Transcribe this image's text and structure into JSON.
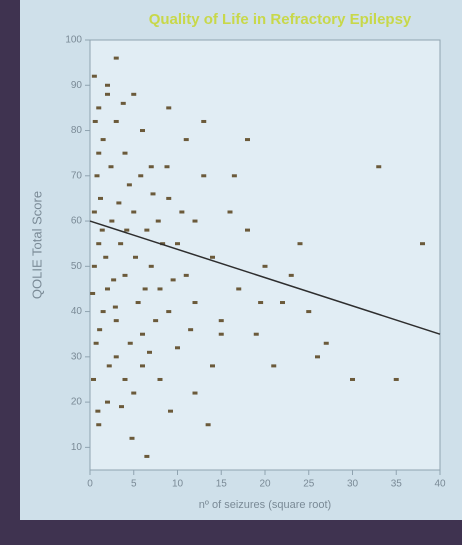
{
  "chart_data": {
    "type": "scatter",
    "title": "Quality of Life in Refractory Epilepsy",
    "x_label": "nº of seizures (square root)",
    "y_label": "QOLIE Total Score",
    "xlim": [
      0,
      40
    ],
    "xticks": [
      0,
      5,
      10,
      15,
      20,
      25,
      30,
      35,
      40
    ],
    "ylim": [
      5,
      100
    ],
    "yticks": [
      10,
      20,
      30,
      40,
      50,
      60,
      70,
      80,
      90,
      100
    ],
    "color": "#6b5a3a",
    "x": [
      0.5,
      1,
      1.5,
      2,
      0.8,
      1.2,
      2.5,
      3,
      1,
      0.5,
      2,
      1.5,
      3,
      0.7,
      2.2,
      4,
      4.5,
      5,
      3.5,
      4,
      5.5,
      6,
      3,
      4,
      2,
      1,
      5,
      6,
      7,
      6.5,
      7,
      8,
      7.5,
      6,
      5,
      9,
      10,
      11,
      12,
      9,
      10,
      8,
      13,
      14,
      12,
      15,
      16,
      17,
      18,
      19,
      20,
      21,
      22,
      24,
      25,
      27,
      30,
      33,
      38,
      9,
      11,
      13,
      15,
      12,
      14,
      18,
      3,
      2,
      1,
      0.5,
      1.8,
      2.7,
      3.3,
      4.2,
      0.3,
      1.1,
      2.4,
      3.8,
      4.6,
      5.2,
      6.3,
      7.2,
      8.3,
      9.5,
      10.5,
      11.5,
      0.6,
      1.4,
      2.9,
      3.6,
      5.8,
      6.8,
      7.8,
      8.8,
      16.5,
      19.5,
      23,
      26,
      35,
      0.4,
      0.9,
      4.8,
      9.2,
      13.5,
      6.5
    ],
    "y": [
      92,
      85,
      78,
      90,
      70,
      65,
      60,
      82,
      55,
      50,
      45,
      40,
      38,
      33,
      28,
      75,
      68,
      62,
      55,
      48,
      42,
      35,
      30,
      25,
      20,
      15,
      88,
      80,
      72,
      58,
      50,
      45,
      38,
      28,
      22,
      65,
      55,
      48,
      60,
      40,
      32,
      25,
      70,
      52,
      42,
      38,
      62,
      45,
      58,
      35,
      50,
      28,
      42,
      55,
      40,
      33,
      25,
      72,
      55,
      85,
      78,
      82,
      35,
      22,
      28,
      78,
      96,
      88,
      75,
      62,
      52,
      47,
      64,
      58,
      44,
      36,
      72,
      86,
      33,
      52,
      45,
      66,
      55,
      47,
      62,
      36,
      82,
      58,
      41,
      19,
      70,
      31,
      60,
      72,
      70,
      42,
      48,
      30,
      25,
      25,
      18,
      12,
      18,
      15,
      8
    ],
    "trend": {
      "x": [
        0,
        40
      ],
      "y": [
        60,
        35
      ],
      "color": "#2e2e2e"
    }
  }
}
